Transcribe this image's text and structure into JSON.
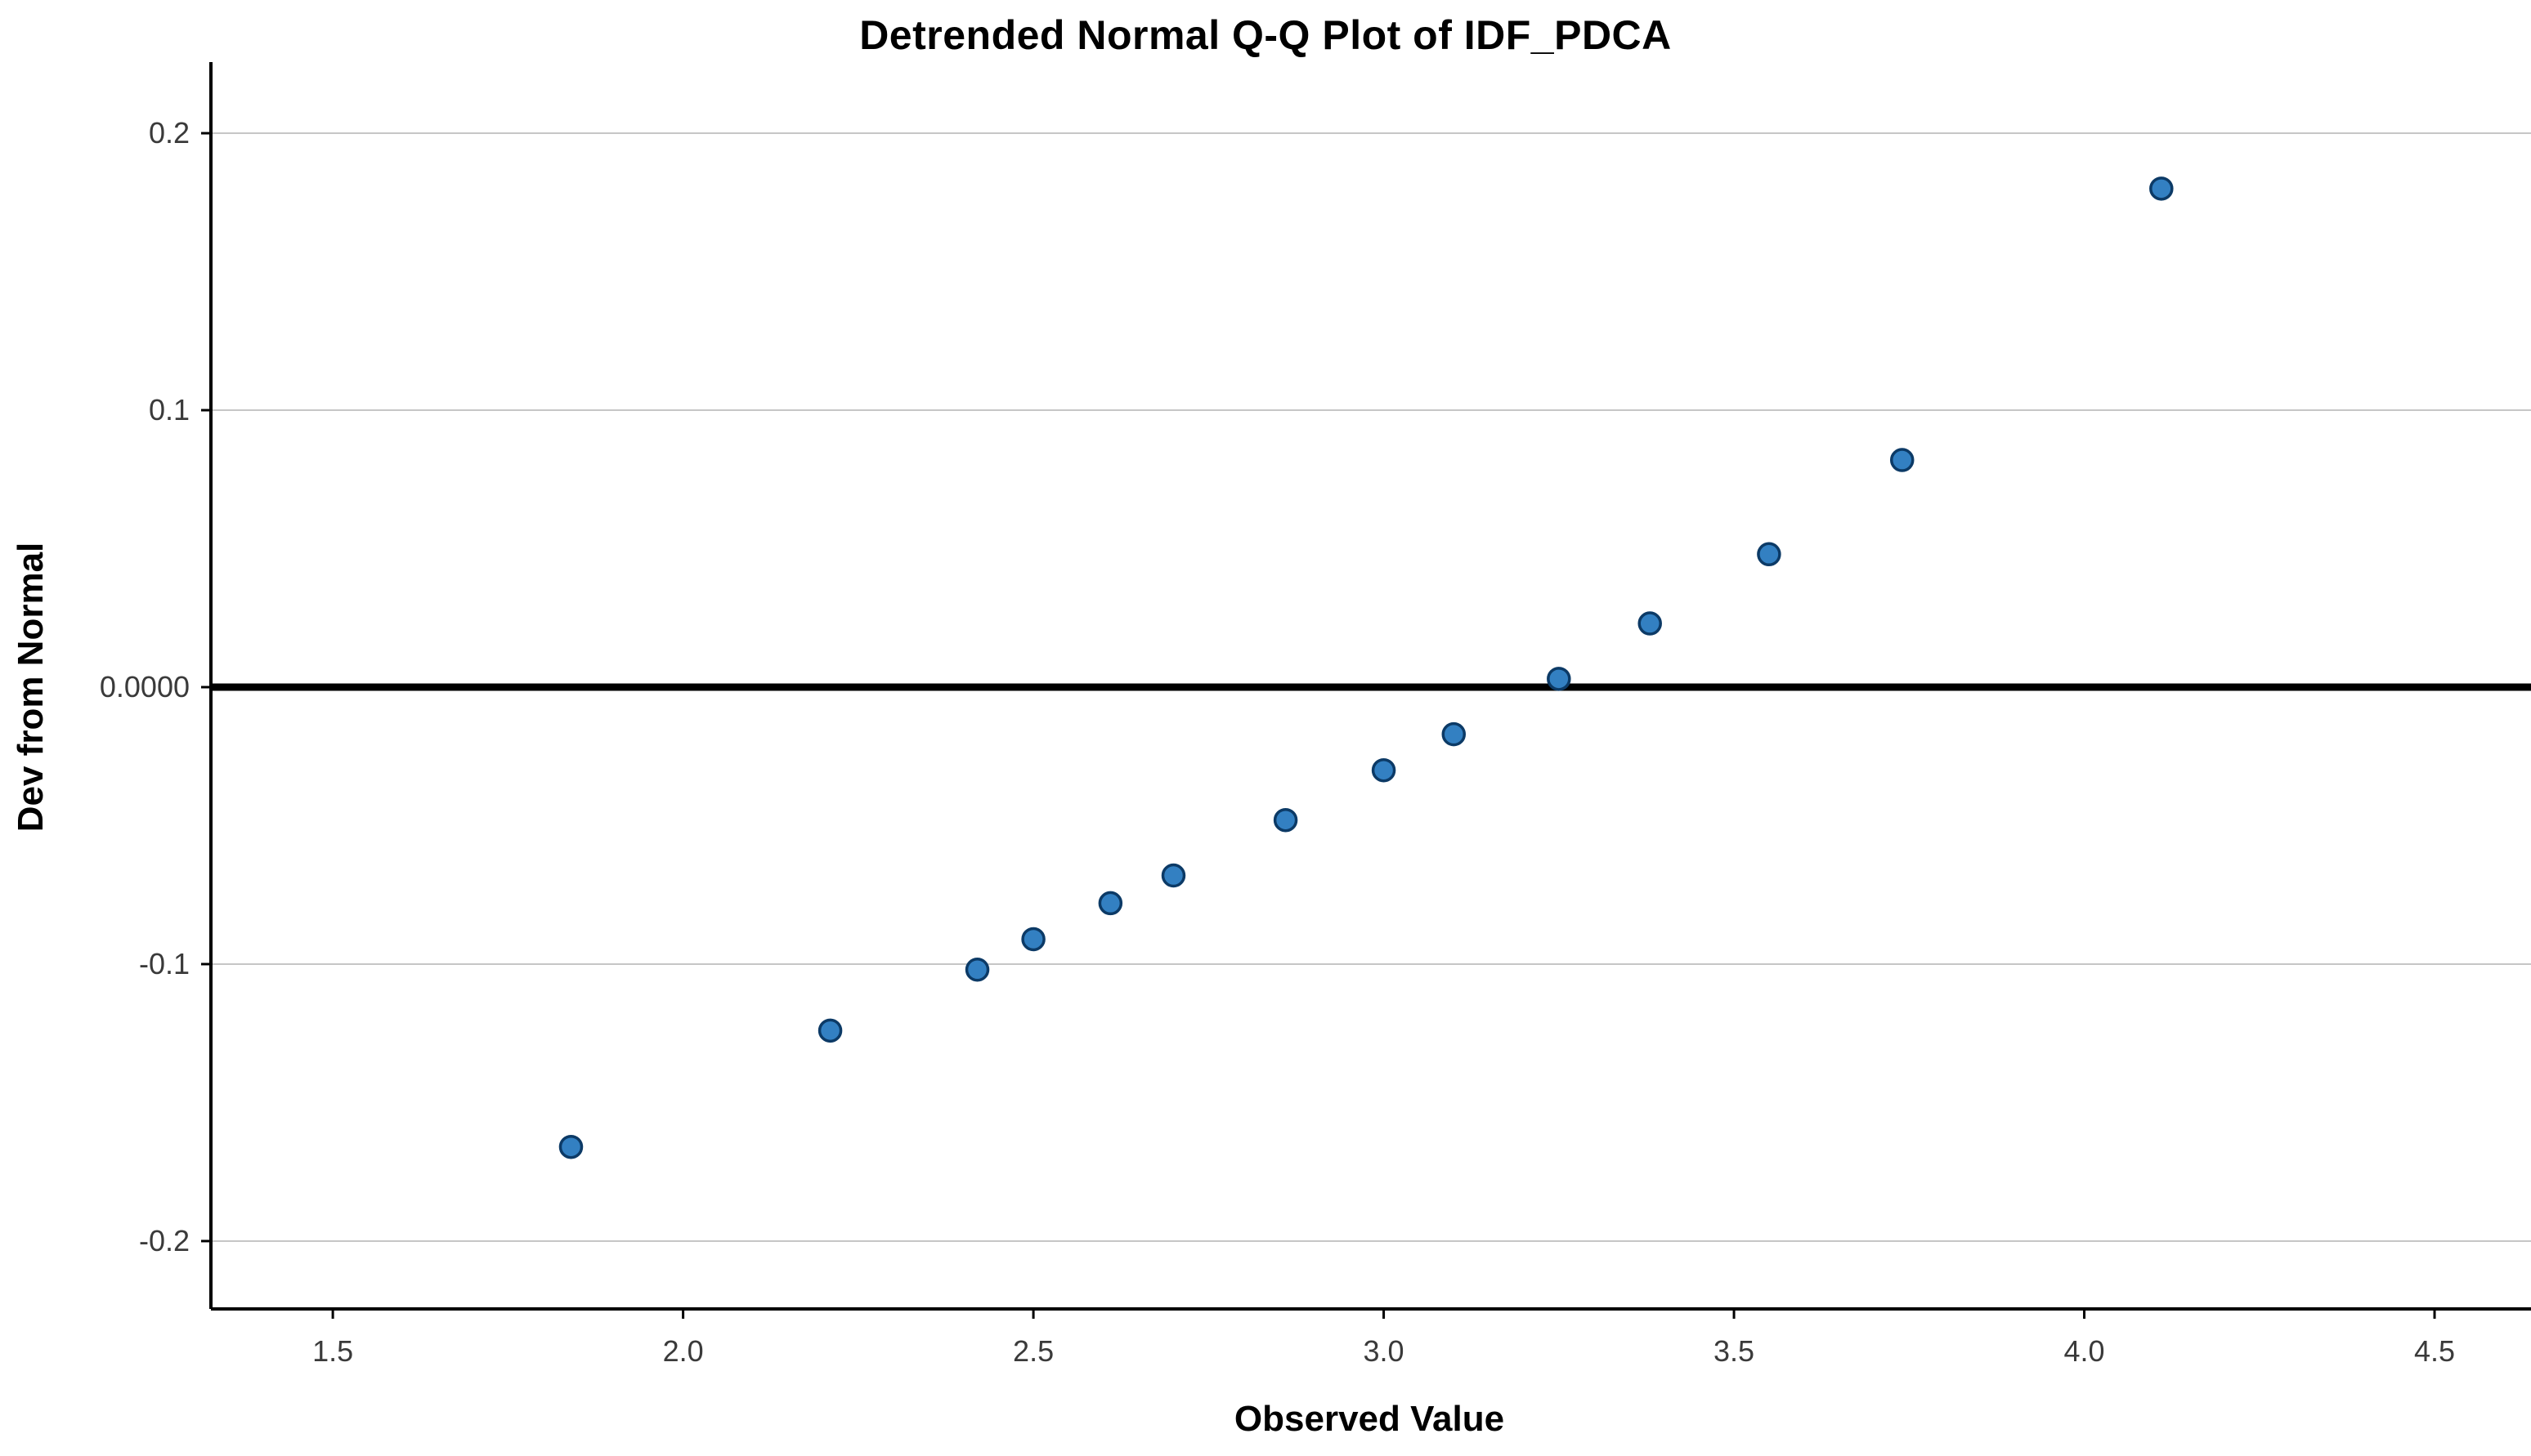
{
  "chart_data": {
    "type": "scatter",
    "title": "Detrended Normal Q-Q Plot of IDF_PDCA",
    "xlabel": "Observed Value",
    "ylabel": "Dev from Normal",
    "xlim": [
      1.326,
      4.633
    ],
    "ylim": [
      -0.2245,
      0.2245
    ],
    "grid": "horizontal",
    "legend": "none",
    "reference_line_y": 0,
    "x_ticks": [
      {
        "value": 1.5,
        "label": "1.5"
      },
      {
        "value": 2.0,
        "label": "2.0"
      },
      {
        "value": 2.5,
        "label": "2.5"
      },
      {
        "value": 3.0,
        "label": "3.0"
      },
      {
        "value": 3.5,
        "label": "3.5"
      },
      {
        "value": 4.0,
        "label": "4.0"
      },
      {
        "value": 4.5,
        "label": "4.5"
      }
    ],
    "y_ticks": [
      {
        "value": 0.2,
        "label": "0.2"
      },
      {
        "value": 0.1,
        "label": "0.1"
      },
      {
        "value": 0,
        "label": "0.0000"
      },
      {
        "value": -0.1,
        "label": "-0.1"
      },
      {
        "value": -0.2,
        "label": "-0.2"
      }
    ],
    "points": [
      {
        "x": 1.84,
        "y": -0.166
      },
      {
        "x": 2.21,
        "y": -0.124
      },
      {
        "x": 2.42,
        "y": -0.102
      },
      {
        "x": 2.5,
        "y": -0.091
      },
      {
        "x": 2.61,
        "y": -0.078
      },
      {
        "x": 2.7,
        "y": -0.068
      },
      {
        "x": 2.86,
        "y": -0.048
      },
      {
        "x": 3.0,
        "y": -0.03
      },
      {
        "x": 3.1,
        "y": -0.017
      },
      {
        "x": 3.25,
        "y": 0.003
      },
      {
        "x": 3.38,
        "y": 0.023
      },
      {
        "x": 3.55,
        "y": 0.048
      },
      {
        "x": 3.74,
        "y": 0.082
      },
      {
        "x": 4.11,
        "y": 0.18
      }
    ],
    "colors": {
      "point_fill": "#3380c2",
      "point_stroke": "#0c3a66",
      "grid": "#c6c6c6",
      "reference_line": "#000000",
      "axis": "#000000",
      "tick_text": "#3a3a3a",
      "background": "#ffffff"
    }
  }
}
